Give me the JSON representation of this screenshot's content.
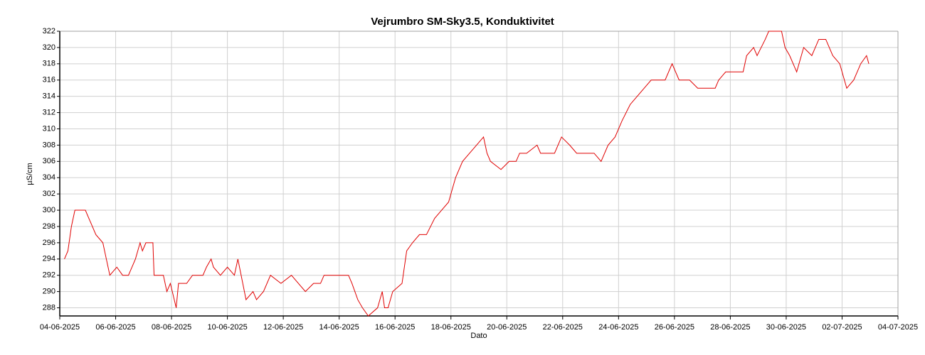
{
  "chart_data": {
    "type": "line",
    "title": "Vejrumbro SM-Sky3.5, Konduktivitet",
    "x_label": "Dato",
    "y_label": "µS/cm",
    "xlim": [
      "2025-06-04T00:00",
      "2025-07-04T00:00"
    ],
    "xticks": [
      {
        "value": "2025-06-04T00:00",
        "label": "04-06-2025"
      },
      {
        "value": "2025-06-06T00:00",
        "label": "06-06-2025"
      },
      {
        "value": "2025-06-08T00:00",
        "label": "08-06-2025"
      },
      {
        "value": "2025-06-10T00:00",
        "label": "10-06-2025"
      },
      {
        "value": "2025-06-12T00:00",
        "label": "12-06-2025"
      },
      {
        "value": "2025-06-14T00:00",
        "label": "14-06-2025"
      },
      {
        "value": "2025-06-16T00:00",
        "label": "16-06-2025"
      },
      {
        "value": "2025-06-18T00:00",
        "label": "18-06-2025"
      },
      {
        "value": "2025-06-20T00:00",
        "label": "20-06-2025"
      },
      {
        "value": "2025-06-22T00:00",
        "label": "22-06-2025"
      },
      {
        "value": "2025-06-24T00:00",
        "label": "24-06-2025"
      },
      {
        "value": "2025-06-26T00:00",
        "label": "26-06-2025"
      },
      {
        "value": "2025-06-28T00:00",
        "label": "28-06-2025"
      },
      {
        "value": "2025-06-30T00:00",
        "label": "30-06-2025"
      },
      {
        "value": "2025-07-02T00:00",
        "label": "02-07-2025"
      },
      {
        "value": "2025-07-04T00:00",
        "label": "04-07-2025"
      }
    ],
    "ylim": [
      287,
      322
    ],
    "yticks": [
      288,
      290,
      292,
      294,
      296,
      298,
      300,
      302,
      304,
      306,
      308,
      310,
      312,
      314,
      316,
      318,
      320,
      322
    ],
    "grid": true,
    "x": [
      "2025-06-04T04:00",
      "2025-06-04T07:00",
      "2025-06-04T10:00",
      "2025-06-04T13:00",
      "2025-06-04T22:00",
      "2025-06-05T01:00",
      "2025-06-05T04:00",
      "2025-06-05T07:00",
      "2025-06-05T13:00",
      "2025-06-05T16:00",
      "2025-06-05T19:00",
      "2025-06-06T01:00",
      "2025-06-06T06:00",
      "2025-06-06T11:00",
      "2025-06-06T14:00",
      "2025-06-06T17:00",
      "2025-06-06T21:00",
      "2025-06-06T23:00",
      "2025-06-07T02:00",
      "2025-06-07T08:00",
      "2025-06-07T09:00",
      "2025-06-07T17:00",
      "2025-06-07T20:00",
      "2025-06-07T23:00",
      "2025-06-08T04:00",
      "2025-06-08T06:00",
      "2025-06-08T13:00",
      "2025-06-08T18:00",
      "2025-06-09T03:00",
      "2025-06-09T06:00",
      "2025-06-09T10:00",
      "2025-06-09T12:00",
      "2025-06-09T18:00",
      "2025-06-10T00:00",
      "2025-06-10T06:00",
      "2025-06-10T09:00",
      "2025-06-10T16:00",
      "2025-06-10T22:00",
      "2025-06-11T01:00",
      "2025-06-11T07:00",
      "2025-06-11T13:00",
      "2025-06-11T22:00",
      "2025-06-12T07:00",
      "2025-06-12T13:00",
      "2025-06-12T19:00",
      "2025-06-13T02:00",
      "2025-06-13T08:00",
      "2025-06-13T11:00",
      "2025-06-13T23:00",
      "2025-06-14T08:00",
      "2025-06-14T11:00",
      "2025-06-14T16:00",
      "2025-06-14T20:00",
      "2025-06-15T01:00",
      "2025-06-15T09:00",
      "2025-06-15T13:00",
      "2025-06-15T15:00",
      "2025-06-15T18:00",
      "2025-06-15T22:00",
      "2025-06-16T06:00",
      "2025-06-16T10:00",
      "2025-06-16T15:00",
      "2025-06-16T21:00",
      "2025-06-17T03:00",
      "2025-06-17T10:00",
      "2025-06-17T16:00",
      "2025-06-17T22:00",
      "2025-06-18T04:00",
      "2025-06-18T10:00",
      "2025-06-18T16:00",
      "2025-06-18T22:00",
      "2025-06-19T04:00",
      "2025-06-19T07:00",
      "2025-06-19T10:00",
      "2025-06-19T19:00",
      "2025-06-20T02:00",
      "2025-06-20T08:00",
      "2025-06-20T11:00",
      "2025-06-20T17:00",
      "2025-06-21T02:00",
      "2025-06-21T05:00",
      "2025-06-21T17:00",
      "2025-06-21T23:00",
      "2025-06-22T06:00",
      "2025-06-22T12:00",
      "2025-06-23T03:00",
      "2025-06-23T09:00",
      "2025-06-23T15:00",
      "2025-06-23T21:00",
      "2025-06-24T03:00",
      "2025-06-24T10:00",
      "2025-06-24T16:00",
      "2025-06-24T22:00",
      "2025-06-25T04:00",
      "2025-06-25T16:00",
      "2025-06-25T22:00",
      "2025-06-26T04:00",
      "2025-06-26T13:00",
      "2025-06-26T20:00",
      "2025-06-27T11:00",
      "2025-06-27T14:00",
      "2025-06-27T20:00",
      "2025-06-28T11:00",
      "2025-06-28T14:00",
      "2025-06-28T20:00",
      "2025-06-28T23:00",
      "2025-06-29T06:00",
      "2025-06-29T09:00",
      "2025-06-29T20:00",
      "2025-06-29T23:00",
      "2025-06-30T03:00",
      "2025-06-30T09:00",
      "2025-06-30T15:00",
      "2025-06-30T22:00",
      "2025-07-01T04:00",
      "2025-07-01T10:00",
      "2025-07-01T16:00",
      "2025-07-01T22:00",
      "2025-07-02T04:00",
      "2025-07-02T10:00",
      "2025-07-02T16:00",
      "2025-07-02T21:00",
      "2025-07-02T23:00"
    ],
    "series": [
      {
        "color": "#e00000",
        "values": [
          294,
          295,
          298,
          300,
          300,
          299,
          298,
          297,
          296,
          294,
          292,
          293,
          292,
          292,
          293,
          294,
          296,
          295,
          296,
          296,
          292,
          292,
          290,
          291,
          288,
          291,
          291,
          292,
          292,
          293,
          294,
          293,
          292,
          293,
          292,
          294,
          289,
          290,
          289,
          290,
          292,
          291,
          292,
          291,
          290,
          291,
          291,
          292,
          292,
          292,
          291,
          289,
          288,
          287,
          288,
          290,
          288,
          288,
          290,
          291,
          295,
          296,
          297,
          297,
          299,
          300,
          301,
          304,
          306,
          307,
          308,
          309,
          307,
          306,
          305,
          306,
          306,
          307,
          307,
          308,
          307,
          307,
          309,
          308,
          307,
          307,
          306,
          308,
          309,
          311,
          313,
          314,
          315,
          316,
          316,
          318,
          316,
          316,
          315,
          315,
          316,
          317,
          317,
          319,
          320,
          319,
          321,
          322,
          322,
          320,
          319,
          317,
          320,
          319,
          321,
          321,
          319,
          318,
          315,
          316,
          318,
          319,
          318
        ]
      }
    ]
  }
}
